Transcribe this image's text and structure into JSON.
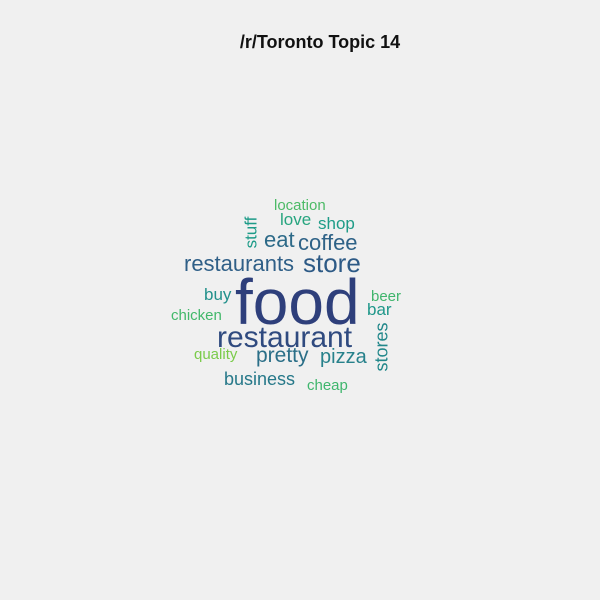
{
  "title": "/r/Toronto Topic 14",
  "words": [
    {
      "text": "food",
      "weight": 1.0,
      "color": "#2e3f7b"
    },
    {
      "text": "restaurant",
      "weight": 0.62,
      "color": "#2f4a7f"
    },
    {
      "text": "store",
      "weight": 0.44,
      "color": "#2d5a86"
    },
    {
      "text": "restaurants",
      "weight": 0.4,
      "color": "#2f5f87"
    },
    {
      "text": "coffee",
      "weight": 0.38,
      "color": "#2e6287"
    },
    {
      "text": "eat",
      "weight": 0.36,
      "color": "#2d6a88"
    },
    {
      "text": "pretty",
      "weight": 0.35,
      "color": "#2b6f88"
    },
    {
      "text": "pizza",
      "weight": 0.33,
      "color": "#27818b"
    },
    {
      "text": "business",
      "weight": 0.3,
      "color": "#267889"
    },
    {
      "text": "stores",
      "weight": 0.3,
      "color": "#23888b"
    },
    {
      "text": "bar",
      "weight": 0.28,
      "color": "#1f978a"
    },
    {
      "text": "buy",
      "weight": 0.28,
      "color": "#22908b"
    },
    {
      "text": "shop",
      "weight": 0.27,
      "color": "#1f9c88"
    },
    {
      "text": "love",
      "weight": 0.27,
      "color": "#27a57f"
    },
    {
      "text": "stuff",
      "weight": 0.26,
      "color": "#1d9b88"
    },
    {
      "text": "beer",
      "weight": 0.24,
      "color": "#3fb56c"
    },
    {
      "text": "location",
      "weight": 0.24,
      "color": "#4cba66"
    },
    {
      "text": "cheap",
      "weight": 0.23,
      "color": "#3fb66d"
    },
    {
      "text": "chicken",
      "weight": 0.23,
      "color": "#42b86a"
    },
    {
      "text": "quality",
      "weight": 0.22,
      "color": "#7acb4a"
    }
  ]
}
